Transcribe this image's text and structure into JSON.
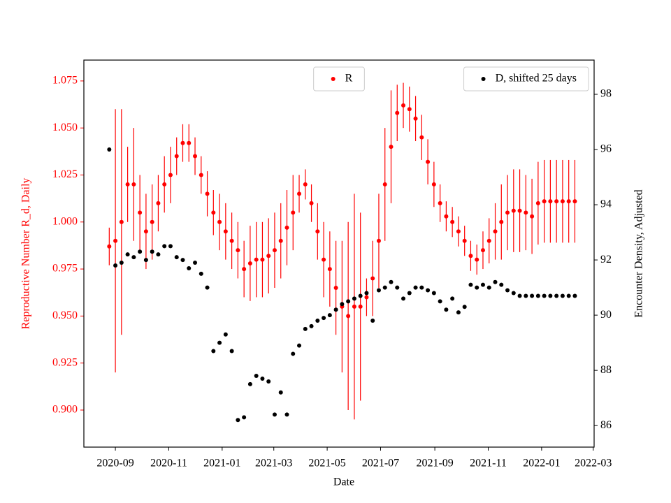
{
  "chart_data": {
    "type": "scatter",
    "x_label": "Date",
    "y_label": "Reproductive Number R_d, Daily",
    "y2_label": "Encounter Density, Adjusted",
    "x": [
      "2020-08-25",
      "2020-09-01",
      "2020-09-08",
      "2020-09-15",
      "2020-09-22",
      "2020-09-29",
      "2020-10-06",
      "2020-10-13",
      "2020-10-20",
      "2020-10-27",
      "2020-11-03",
      "2020-11-10",
      "2020-11-17",
      "2020-11-24",
      "2020-12-01",
      "2020-12-08",
      "2020-12-15",
      "2020-12-22",
      "2020-12-29",
      "2021-01-05",
      "2021-01-12",
      "2021-01-19",
      "2021-01-26",
      "2021-02-02",
      "2021-02-09",
      "2021-02-16",
      "2021-02-23",
      "2021-03-02",
      "2021-03-09",
      "2021-03-16",
      "2021-03-23",
      "2021-03-30",
      "2021-04-06",
      "2021-04-13",
      "2021-04-20",
      "2021-04-27",
      "2021-05-04",
      "2021-05-11",
      "2021-05-18",
      "2021-05-25",
      "2021-06-01",
      "2021-06-08",
      "2021-06-15",
      "2021-06-22",
      "2021-06-29",
      "2021-07-06",
      "2021-07-13",
      "2021-07-20",
      "2021-07-27",
      "2021-08-03",
      "2021-08-10",
      "2021-08-17",
      "2021-08-24",
      "2021-08-31",
      "2021-09-07",
      "2021-09-14",
      "2021-09-21",
      "2021-09-28",
      "2021-10-05",
      "2021-10-12",
      "2021-10-19",
      "2021-10-26",
      "2021-11-02",
      "2021-11-09",
      "2021-11-16",
      "2021-11-23",
      "2021-11-30",
      "2021-12-07",
      "2021-12-14",
      "2021-12-21",
      "2021-12-28",
      "2022-01-04",
      "2022-01-11",
      "2022-01-18",
      "2022-01-25",
      "2022-02-01",
      "2022-02-08"
    ],
    "series": [
      {
        "name": "R",
        "color": "#ff0000",
        "axis": "y",
        "legend": "upper center",
        "values": [
          0.987,
          0.99,
          1.0,
          1.02,
          1.02,
          1.005,
          0.995,
          1.0,
          1.01,
          1.02,
          1.025,
          1.035,
          1.042,
          1.042,
          1.035,
          1.025,
          1.015,
          1.005,
          1.0,
          0.995,
          0.99,
          0.985,
          0.975,
          0.978,
          0.98,
          0.98,
          0.982,
          0.985,
          0.99,
          0.997,
          1.005,
          1.015,
          1.02,
          1.01,
          0.995,
          0.98,
          0.975,
          0.965,
          0.955,
          0.95,
          0.955,
          0.955,
          0.96,
          0.97,
          0.99,
          1.02,
          1.04,
          1.058,
          1.062,
          1.06,
          1.055,
          1.045,
          1.032,
          1.02,
          1.01,
          1.003,
          1.0,
          0.995,
          0.99,
          0.982,
          0.98,
          0.985,
          0.99,
          0.995,
          1.0,
          1.005,
          1.006,
          1.006,
          1.005,
          1.003,
          1.01,
          1.011,
          1.011,
          1.011,
          1.011,
          1.011,
          1.011
        ],
        "errors": [
          0.01,
          0.07,
          0.06,
          0.02,
          0.03,
          0.02,
          0.02,
          0.02,
          0.015,
          0.015,
          0.015,
          0.01,
          0.01,
          0.01,
          0.01,
          0.01,
          0.012,
          0.012,
          0.015,
          0.015,
          0.015,
          0.015,
          0.015,
          0.02,
          0.02,
          0.02,
          0.02,
          0.02,
          0.02,
          0.02,
          0.02,
          0.01,
          0.008,
          0.01,
          0.015,
          0.02,
          0.02,
          0.025,
          0.035,
          0.05,
          0.06,
          0.05,
          0.01,
          0.02,
          0.025,
          0.03,
          0.03,
          0.015,
          0.012,
          0.012,
          0.012,
          0.012,
          0.012,
          0.012,
          0.01,
          0.008,
          0.008,
          0.008,
          0.008,
          0.008,
          0.008,
          0.01,
          0.012,
          0.015,
          0.02,
          0.02,
          0.022,
          0.022,
          0.02,
          0.02,
          0.022,
          0.022,
          0.022,
          0.022,
          0.022,
          0.022,
          0.022
        ]
      },
      {
        "name": "D, shifted 25 days",
        "color": "#000000",
        "axis": "y2",
        "legend": "upper right",
        "values": [
          96.0,
          91.8,
          91.9,
          92.2,
          92.1,
          92.3,
          92.0,
          92.3,
          92.2,
          92.5,
          92.5,
          92.1,
          92.0,
          91.7,
          91.9,
          91.5,
          91.0,
          88.7,
          89.0,
          89.3,
          88.7,
          86.2,
          86.3,
          87.5,
          87.8,
          87.7,
          87.6,
          86.4,
          87.2,
          86.4,
          88.6,
          88.9,
          89.5,
          89.6,
          89.8,
          89.9,
          90.0,
          90.2,
          90.4,
          90.5,
          90.6,
          90.7,
          90.8,
          89.8,
          90.9,
          91.0,
          91.2,
          91.0,
          90.6,
          90.8,
          91.0,
          91.0,
          90.9,
          90.8,
          90.5,
          90.2,
          90.6,
          90.1,
          90.3,
          91.1,
          91.0,
          91.1,
          91.0,
          91.2,
          91.1,
          90.9,
          90.8,
          90.7,
          90.7,
          90.7,
          90.7,
          90.7,
          90.7,
          90.7,
          90.7,
          90.7,
          90.7
        ]
      }
    ],
    "xlim": [
      "2020-07-27",
      "2022-03-02"
    ],
    "xticks": [
      {
        "value": "2020-09-01",
        "label": "2020-09"
      },
      {
        "value": "2020-11-01",
        "label": "2020-11"
      },
      {
        "value": "2021-01-01",
        "label": "2021-01"
      },
      {
        "value": "2021-03-01",
        "label": "2021-03"
      },
      {
        "value": "2021-05-01",
        "label": "2021-05"
      },
      {
        "value": "2021-07-01",
        "label": "2021-07"
      },
      {
        "value": "2021-09-01",
        "label": "2021-09"
      },
      {
        "value": "2021-11-01",
        "label": "2021-11"
      },
      {
        "value": "2022-01-01",
        "label": "2022-01"
      },
      {
        "value": "2022-03-01",
        "label": "2022-03"
      }
    ],
    "ylim": [
      0.8803,
      1.0861
    ],
    "yticks": [
      {
        "value": 0.9,
        "label": "0.900"
      },
      0.925,
      {
        "value": 0.95,
        "label": "0.950"
      },
      0.975,
      {
        "value": 1.0,
        "label": "1.000"
      },
      1.025,
      {
        "value": 1.05,
        "label": "1.050"
      },
      1.075
    ],
    "y_color": "#ff0000",
    "y2lim": [
      85.22,
      99.24
    ],
    "y2ticks": [
      86,
      88,
      90,
      92,
      94,
      96,
      98
    ]
  }
}
